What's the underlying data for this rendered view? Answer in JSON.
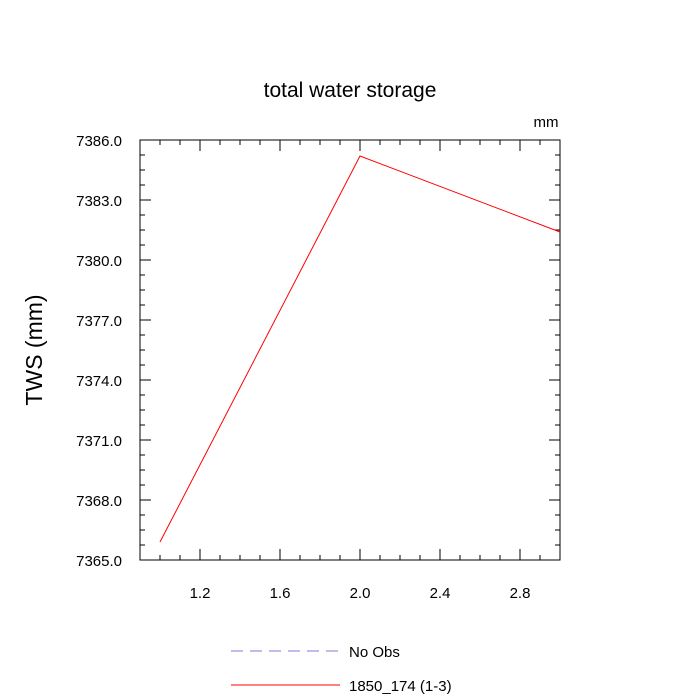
{
  "chart_data": {
    "type": "line",
    "title": "total water storage",
    "units_label": "mm",
    "xlabel": "",
    "ylabel": "TWS  (mm)",
    "xlim": [
      0.9,
      3.0
    ],
    "ylim": [
      7365.0,
      7386.0
    ],
    "x_ticks": [
      1.2,
      1.6,
      2.0,
      2.4,
      2.8
    ],
    "x_tick_labels": [
      "1.2",
      "1.6",
      "2.0",
      "2.4",
      "2.8"
    ],
    "y_ticks": [
      7365.0,
      7368.0,
      7371.0,
      7374.0,
      7377.0,
      7380.0,
      7383.0,
      7386.0
    ],
    "y_tick_labels": [
      "7365.0",
      "7368.0",
      "7371.0",
      "7374.0",
      "7377.0",
      "7380.0",
      "7383.0",
      "7386.0"
    ],
    "grid": false,
    "legend_placement": "bottom-center",
    "series": [
      {
        "name": "No Obs",
        "color": "#7b7bdc",
        "dash": "dashed",
        "x": [],
        "y": []
      },
      {
        "name": "1850_174 (1-3)",
        "color": "#ff0000",
        "dash": "solid",
        "x": [
          1.0,
          2.0,
          3.0
        ],
        "y": [
          7365.9,
          7385.2,
          7381.4
        ]
      }
    ]
  }
}
